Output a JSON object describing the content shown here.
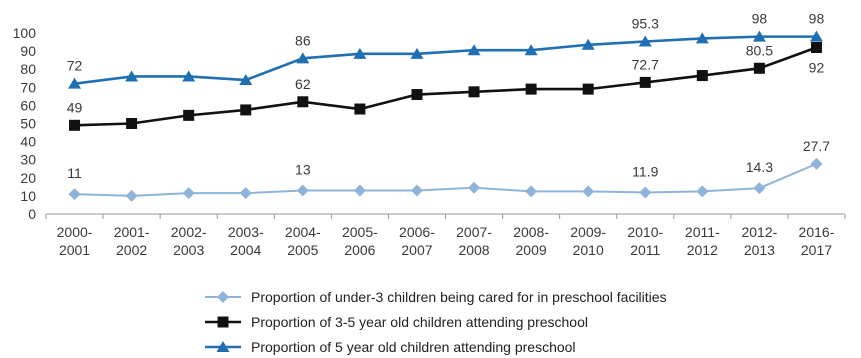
{
  "chart_data": {
    "type": "line",
    "categories": [
      [
        "2000-",
        "2001"
      ],
      [
        "2001-",
        "2002"
      ],
      [
        "2002-",
        "2003"
      ],
      [
        "2003-",
        "2004"
      ],
      [
        "2004-",
        "2005"
      ],
      [
        "2005-",
        "2006"
      ],
      [
        "2006-",
        "2007"
      ],
      [
        "2007-",
        "2008"
      ],
      [
        "2008-",
        "2009"
      ],
      [
        "2009-",
        "2010"
      ],
      [
        "2010-",
        "2011"
      ],
      [
        "2011-",
        "2012"
      ],
      [
        "2012-",
        "2013"
      ],
      [
        "2016-",
        "2017"
      ]
    ],
    "y_ticks": [
      "0",
      "10",
      "20",
      "30",
      "40",
      "50",
      "60",
      "70",
      "80",
      "90",
      "100"
    ],
    "ylim": [
      0,
      100
    ],
    "grid": false,
    "legend_position": "bottom",
    "series": [
      {
        "name": "Proportion of under-3 children being cared for in preschool facilities",
        "color": "#8fb4d9",
        "marker": "diamond",
        "values": [
          11,
          10,
          11.5,
          11.5,
          13,
          13,
          13,
          14.5,
          12.5,
          12.5,
          11.9,
          12.5,
          14.3,
          27.7
        ],
        "labels": [
          {
            "index": 0,
            "text": "11"
          },
          {
            "index": 4,
            "text": "13"
          },
          {
            "index": 10,
            "text": "11.9"
          },
          {
            "index": 12,
            "text": "14.3"
          },
          {
            "index": 13,
            "text": "27.7"
          }
        ]
      },
      {
        "name": "Proportion of 3-5 year old children attending preschool",
        "color": "#111111",
        "marker": "square",
        "values": [
          49,
          50,
          54.5,
          57.5,
          62,
          58,
          66,
          67.5,
          69,
          69,
          72.7,
          76.5,
          80.5,
          92
        ],
        "labels": [
          {
            "index": 0,
            "text": "49"
          },
          {
            "index": 4,
            "text": "62"
          },
          {
            "index": 10,
            "text": "72.7"
          },
          {
            "index": 12,
            "text": "80.5"
          },
          {
            "index": 13,
            "text": "92"
          }
        ]
      },
      {
        "name": "Proportion of 5 year old children attending preschool",
        "color": "#1f6fb2",
        "marker": "triangle",
        "values": [
          72,
          76,
          76,
          74,
          86,
          88.5,
          88.5,
          90.5,
          90.5,
          93.5,
          95.3,
          97,
          98,
          98
        ],
        "labels": [
          {
            "index": 0,
            "text": "72"
          },
          {
            "index": 4,
            "text": "86"
          },
          {
            "index": 10,
            "text": "95.3"
          },
          {
            "index": 12,
            "text": "98"
          },
          {
            "index": 13,
            "text": "98"
          }
        ]
      }
    ]
  }
}
